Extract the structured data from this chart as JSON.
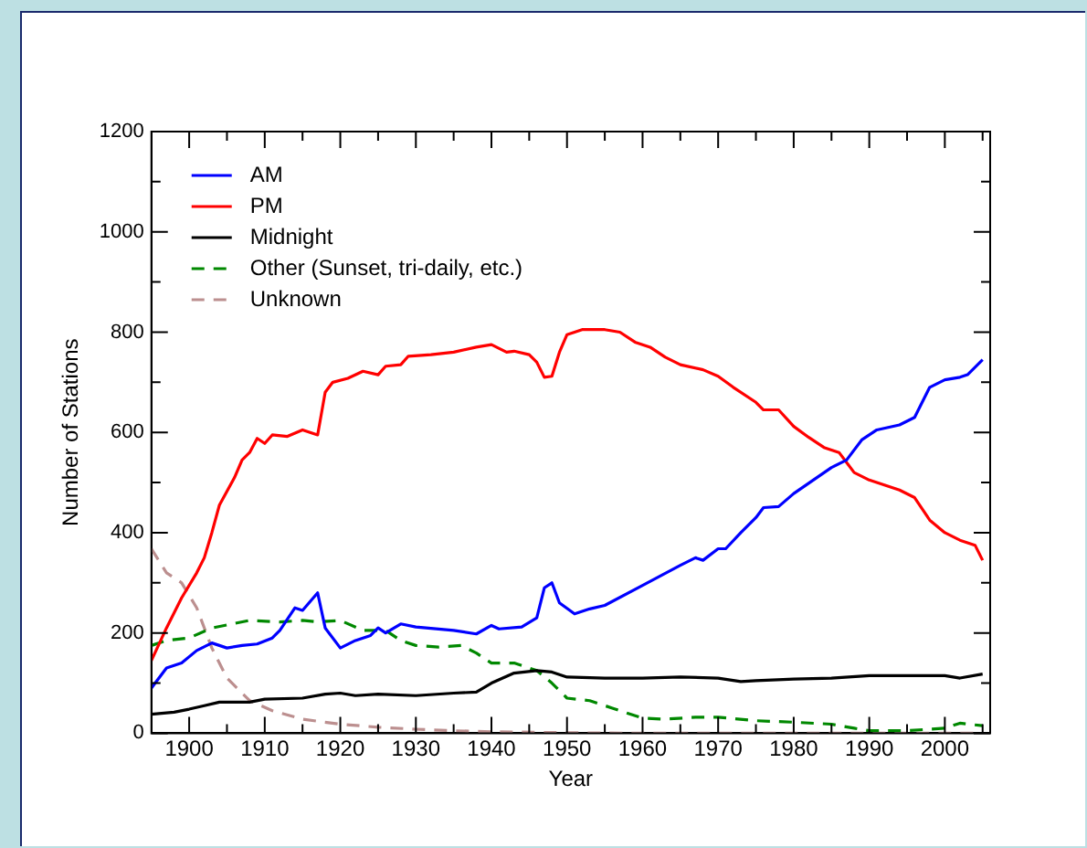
{
  "chart_data": {
    "type": "line",
    "xlabel": "Year",
    "ylabel": "Number of Stations",
    "xlim": [
      1895,
      2006
    ],
    "ylim": [
      0,
      1200
    ],
    "xticks": [
      1900,
      1910,
      1920,
      1930,
      1940,
      1950,
      1960,
      1970,
      1980,
      1990,
      2000
    ],
    "yticks": [
      0,
      200,
      400,
      600,
      800,
      1000,
      1200
    ],
    "grid": false,
    "legend": "top left",
    "marker": "none",
    "series": [
      {
        "name": "AM",
        "color": "#0000ff",
        "line_style": "solid",
        "x": [
          1895,
          1897,
          1899,
          1901,
          1903,
          1905,
          1907,
          1909,
          1911,
          1912,
          1914,
          1915,
          1917,
          1918,
          1920,
          1922,
          1924,
          1925,
          1926,
          1928,
          1930,
          1935,
          1938,
          1940,
          1941,
          1944,
          1946,
          1947,
          1948,
          1949,
          1951,
          1953,
          1955,
          1960,
          1965,
          1967,
          1968,
          1970,
          1971,
          1973,
          1975,
          1976,
          1978,
          1980,
          1985,
          1987,
          1989,
          1991,
          1994,
          1996,
          1998,
          2000,
          2002,
          2003,
          2005
        ],
        "values": [
          90,
          130,
          140,
          165,
          180,
          170,
          175,
          178,
          190,
          205,
          250,
          245,
          280,
          210,
          170,
          185,
          195,
          210,
          200,
          218,
          212,
          205,
          198,
          215,
          208,
          212,
          230,
          290,
          300,
          260,
          238,
          248,
          255,
          295,
          335,
          350,
          345,
          368,
          368,
          400,
          430,
          450,
          452,
          478,
          530,
          545,
          585,
          605,
          615,
          630,
          690,
          705,
          710,
          715,
          745
        ]
      },
      {
        "name": "PM",
        "color": "#ff0000",
        "line_style": "solid",
        "x": [
          1895,
          1897,
          1899,
          1901,
          1902,
          1903,
          1904,
          1906,
          1907,
          1908,
          1909,
          1910,
          1911,
          1913,
          1915,
          1917,
          1918,
          1919,
          1921,
          1923,
          1925,
          1926,
          1928,
          1929,
          1932,
          1935,
          1938,
          1940,
          1942,
          1943,
          1945,
          1946,
          1947,
          1948,
          1949,
          1950,
          1952,
          1955,
          1957,
          1959,
          1961,
          1963,
          1965,
          1968,
          1970,
          1972,
          1975,
          1976,
          1978,
          1980,
          1982,
          1984,
          1986,
          1988,
          1990,
          1992,
          1994,
          1996,
          1998,
          2000,
          2002,
          2004,
          2005
        ],
        "values": [
          145,
          210,
          270,
          320,
          350,
          400,
          455,
          510,
          545,
          560,
          588,
          578,
          595,
          592,
          605,
          595,
          680,
          700,
          708,
          722,
          715,
          732,
          735,
          752,
          755,
          760,
          770,
          775,
          760,
          762,
          755,
          740,
          710,
          712,
          760,
          795,
          805,
          805,
          800,
          780,
          770,
          750,
          735,
          725,
          712,
          690,
          660,
          645,
          645,
          612,
          590,
          570,
          560,
          520,
          505,
          495,
          485,
          470,
          425,
          400,
          385,
          375,
          345
        ]
      },
      {
        "name": "Midnight",
        "color": "#000000",
        "line_style": "solid",
        "x": [
          1895,
          1898,
          1900,
          1902,
          1904,
          1908,
          1910,
          1915,
          1918,
          1920,
          1922,
          1925,
          1930,
          1935,
          1938,
          1940,
          1943,
          1946,
          1948,
          1950,
          1955,
          1960,
          1965,
          1970,
          1973,
          1975,
          1980,
          1985,
          1990,
          1995,
          2000,
          2002,
          2005
        ],
        "values": [
          38,
          42,
          48,
          55,
          62,
          62,
          68,
          70,
          78,
          80,
          75,
          78,
          75,
          80,
          82,
          100,
          120,
          125,
          122,
          112,
          110,
          110,
          112,
          110,
          103,
          105,
          108,
          110,
          115,
          115,
          115,
          110,
          118
        ]
      },
      {
        "name": "Other (Sunset, tri-daily, etc.)",
        "color": "#008800",
        "line_style": "dashed",
        "x": [
          1895,
          1897,
          1900,
          1903,
          1908,
          1912,
          1915,
          1917,
          1920,
          1923,
          1926,
          1928,
          1930,
          1933,
          1936,
          1938,
          1940,
          1943,
          1946,
          1948,
          1950,
          1953,
          1956,
          1960,
          1963,
          1967,
          1970,
          1975,
          1980,
          1985,
          1988,
          1990,
          1995,
          2000,
          2002,
          2005
        ],
        "values": [
          175,
          185,
          190,
          210,
          225,
          222,
          225,
          222,
          225,
          205,
          205,
          185,
          175,
          172,
          175,
          160,
          140,
          140,
          125,
          100,
          70,
          65,
          50,
          30,
          28,
          32,
          32,
          25,
          22,
          18,
          10,
          5,
          5,
          10,
          20,
          15
        ]
      },
      {
        "name": "Unknown",
        "color": "#bc8f8f",
        "line_style": "dashed",
        "x": [
          1895,
          1897,
          1899,
          1901,
          1903,
          1905,
          1908,
          1911,
          1915,
          1920,
          1925,
          1930,
          1935,
          1940,
          1950,
          1960,
          1980,
          2005
        ],
        "values": [
          368,
          320,
          300,
          250,
          170,
          110,
          65,
          45,
          28,
          18,
          12,
          8,
          5,
          3,
          1,
          0,
          0,
          0
        ]
      }
    ]
  }
}
